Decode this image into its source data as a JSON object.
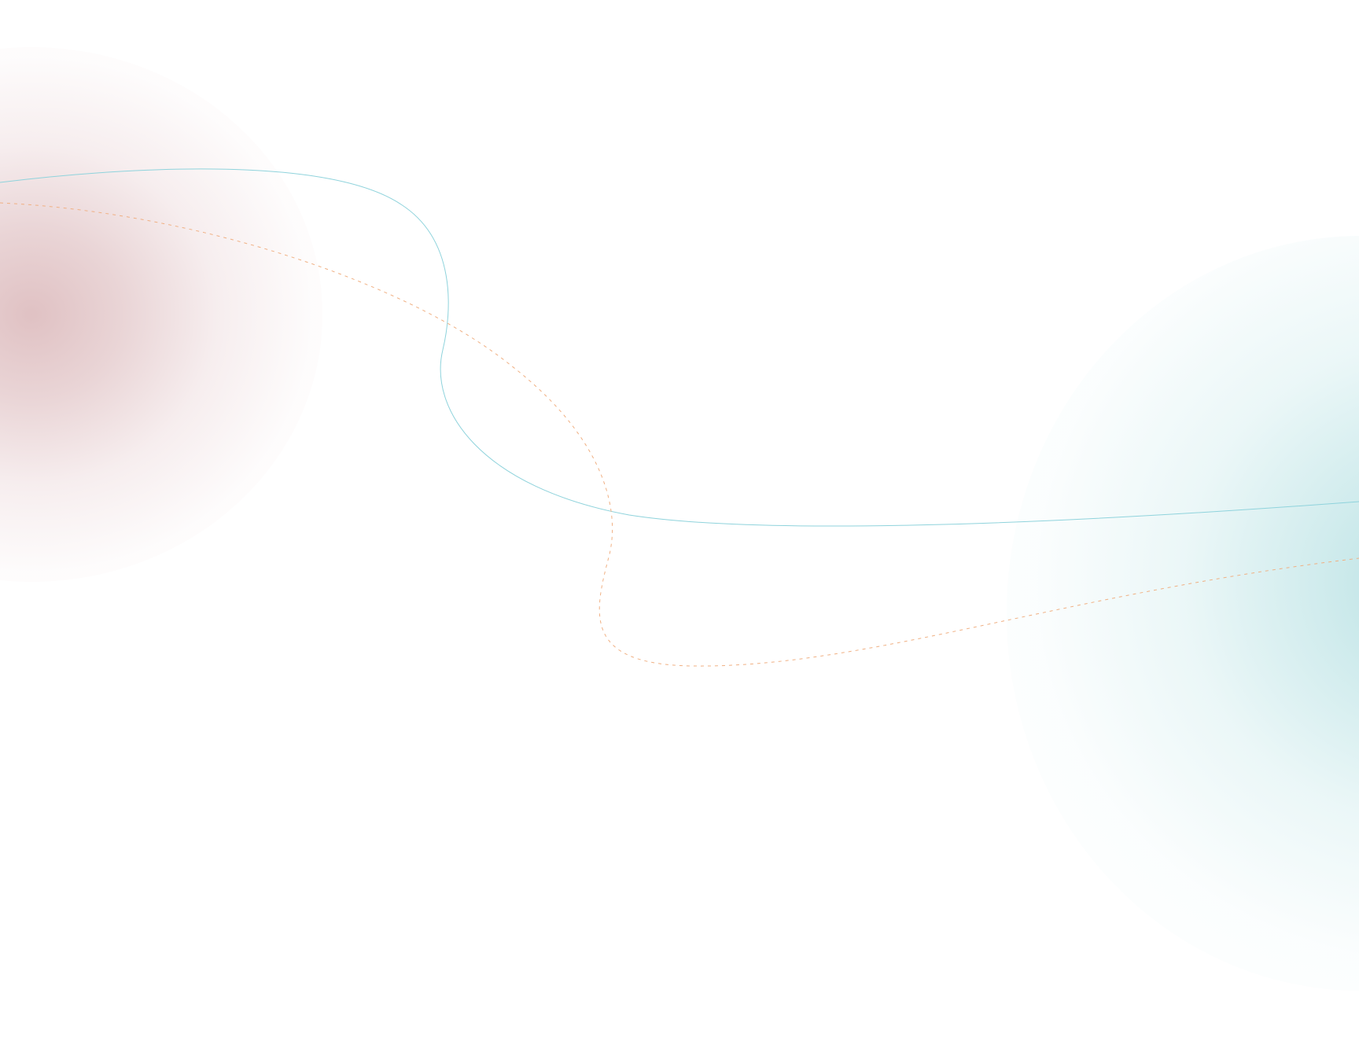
{
  "background": {
    "base_color": "#ffffff",
    "blobs": [
      {
        "name": "rose-glow",
        "color": "#dcbcbe"
      },
      {
        "name": "teal-glow",
        "color": "#b2dee0"
      }
    ],
    "curves": [
      {
        "name": "solid-curve",
        "color": "#8fd3dc",
        "style": "solid"
      },
      {
        "name": "dashed-curve",
        "color": "#f0b083",
        "style": "dashed"
      }
    ]
  }
}
